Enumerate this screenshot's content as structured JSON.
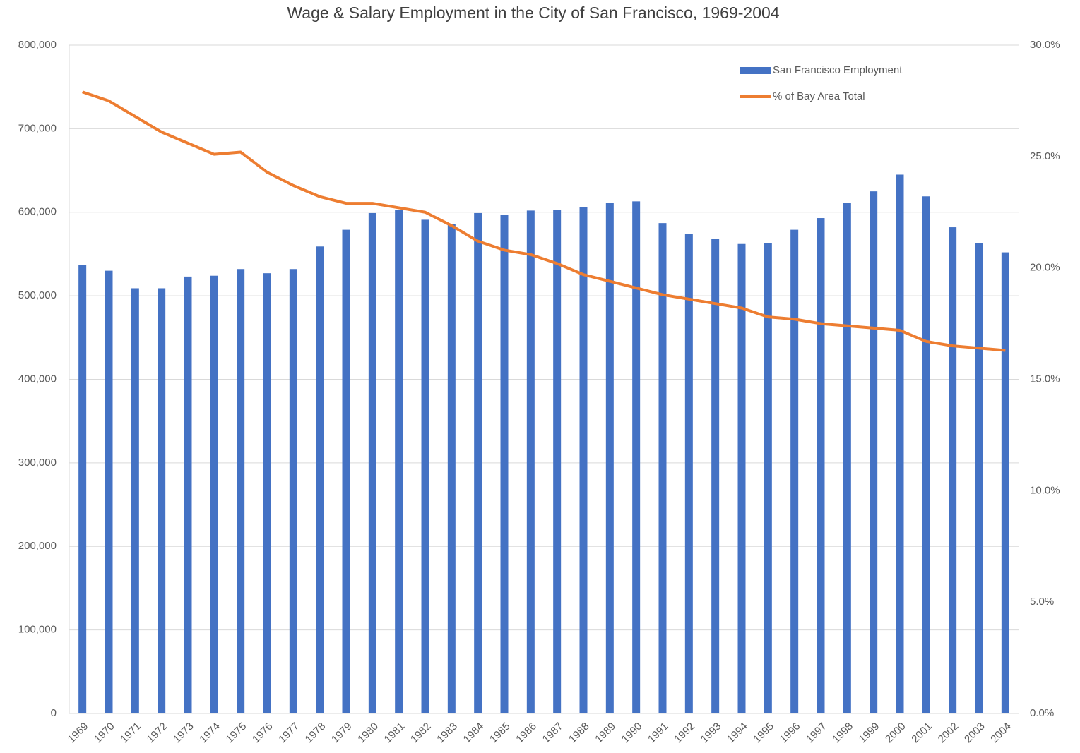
{
  "chart_data": {
    "type": "bar_line",
    "title": "Wage & Salary Employment  in the City of San Francisco, 1969-2004",
    "categories": [
      "1969",
      "1970",
      "1971",
      "1972",
      "1973",
      "1974",
      "1975",
      "1976",
      "1977",
      "1978",
      "1979",
      "1980",
      "1981",
      "1982",
      "1983",
      "1984",
      "1985",
      "1986",
      "1987",
      "1988",
      "1989",
      "1990",
      "1991",
      "1992",
      "1993",
      "1994",
      "1995",
      "1996",
      "1997",
      "1998",
      "1999",
      "2000",
      "2001",
      "2002",
      "2003",
      "2004"
    ],
    "series": [
      {
        "name": "San Francisco Employment",
        "type": "bar",
        "color": "#4472c4",
        "axis": "y",
        "values": [
          537000,
          530000,
          509000,
          509000,
          523000,
          524000,
          532000,
          527000,
          532000,
          559000,
          579000,
          599000,
          603000,
          591000,
          586000,
          599000,
          597000,
          602000,
          603000,
          606000,
          611000,
          613000,
          587000,
          574000,
          568000,
          562000,
          563000,
          579000,
          593000,
          611000,
          625000,
          645000,
          619000,
          582000,
          563000,
          552000
        ]
      },
      {
        "name": "% of Bay Area Total",
        "type": "line",
        "color": "#ed7d31",
        "axis": "y2",
        "values": [
          27.9,
          27.5,
          26.8,
          26.1,
          25.6,
          25.1,
          25.2,
          24.3,
          23.7,
          23.2,
          22.9,
          22.9,
          22.7,
          22.5,
          21.9,
          21.2,
          20.8,
          20.6,
          20.2,
          19.7,
          19.4,
          19.1,
          18.8,
          18.6,
          18.4,
          18.2,
          17.8,
          17.7,
          17.5,
          17.4,
          17.3,
          17.2,
          16.7,
          16.5,
          16.4,
          16.3
        ]
      }
    ],
    "ylim": [
      0,
      800000
    ],
    "yticks": [
      0,
      {
        "value": 100000,
        "label": "100,000"
      },
      {
        "value": 200000,
        "label": "200,000"
      },
      {
        "value": 300000,
        "label": "300,000"
      },
      {
        "value": 400000,
        "label": "400,000"
      },
      {
        "value": 500000,
        "label": "500,000"
      },
      {
        "value": 600000,
        "label": "600,000"
      },
      {
        "value": 700000,
        "label": "700,000"
      },
      {
        "value": 800000,
        "label": "800,000"
      }
    ],
    "y2lim": [
      0,
      30
    ],
    "y2ticks": [
      {
        "value": 0,
        "label": "0.0%"
      },
      {
        "value": 5,
        "label": "5.0%"
      },
      {
        "value": 10,
        "label": "10.0%"
      },
      {
        "value": 15,
        "label": "15.0%"
      },
      {
        "value": 20,
        "label": "20.0%"
      },
      {
        "value": 25,
        "label": "25.0%"
      },
      {
        "value": 30,
        "label": "30.0%"
      }
    ],
    "grid": true,
    "legend": "upper right"
  }
}
